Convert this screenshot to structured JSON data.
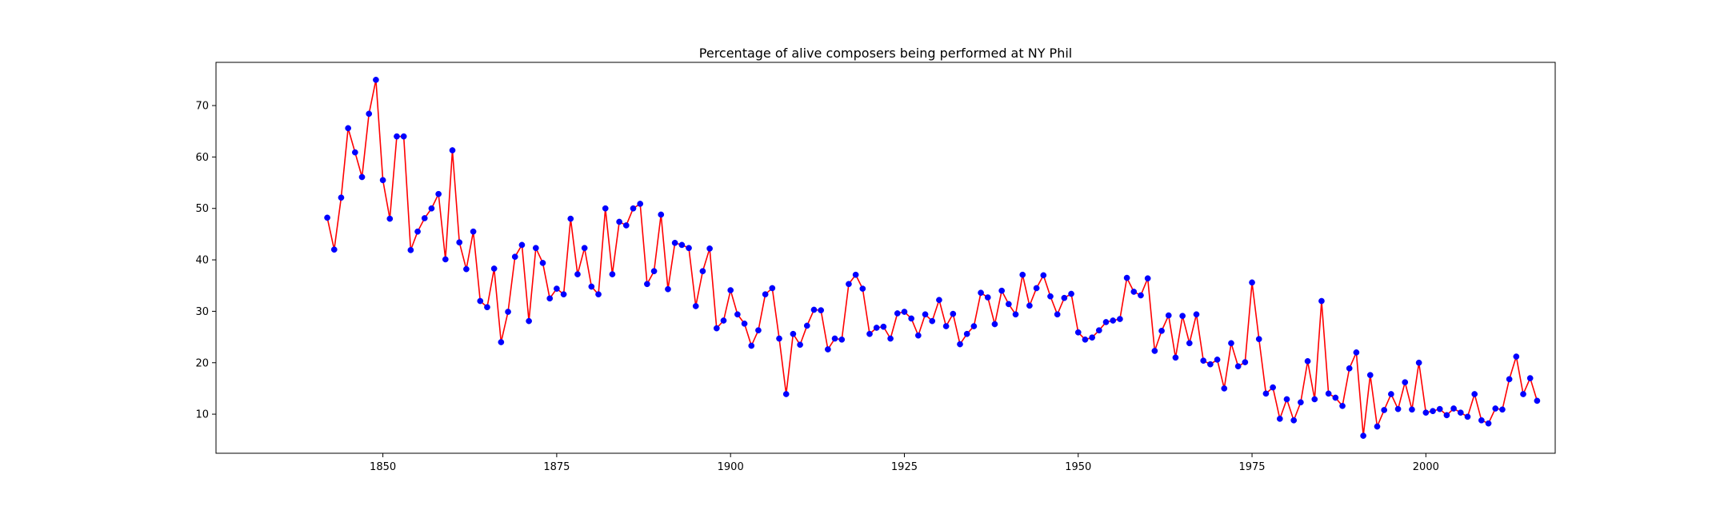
{
  "chart_data": {
    "type": "line",
    "title": "Percentage of alive composers being performed at NY Phil",
    "xlabel": "",
    "ylabel": "",
    "xlim": [
      1826,
      2018.6
    ],
    "ylim": [
      2.4,
      78.4
    ],
    "x_ticks": [
      1850,
      1875,
      1900,
      1925,
      1950,
      1975,
      2000
    ],
    "y_ticks": [
      10,
      20,
      30,
      40,
      50,
      60,
      70
    ],
    "grid": false,
    "legend": "none",
    "line_color": "#ff0000",
    "marker_color": "#0000ff",
    "series": [
      {
        "x": [
          1842,
          1843,
          1844,
          1845,
          1846,
          1847,
          1848,
          1849,
          1850,
          1851,
          1852,
          1853,
          1854,
          1855,
          1856,
          1857,
          1858,
          1859,
          1860,
          1861,
          1862,
          1863,
          1864,
          1865,
          1866,
          1867,
          1868,
          1869,
          1870,
          1871,
          1872,
          1873,
          1874,
          1875,
          1876,
          1877,
          1878,
          1879,
          1880,
          1881,
          1882,
          1883,
          1884,
          1885,
          1886,
          1887,
          1888,
          1889,
          1890,
          1891,
          1892,
          1893,
          1894,
          1895,
          1896,
          1897,
          1898,
          1899,
          1900,
          1901,
          1902,
          1903,
          1904,
          1905,
          1906,
          1907,
          1908,
          1909,
          1910,
          1911,
          1912,
          1913,
          1914,
          1915,
          1916,
          1917,
          1918,
          1919,
          1920,
          1921,
          1922,
          1923,
          1924,
          1925,
          1926,
          1927,
          1928,
          1929,
          1930,
          1931,
          1932,
          1933,
          1934,
          1935,
          1936,
          1937,
          1938,
          1939,
          1940,
          1941,
          1942,
          1943,
          1944,
          1945,
          1946,
          1947,
          1948,
          1949,
          1950,
          1951,
          1952,
          1953,
          1954,
          1955,
          1956,
          1957,
          1958,
          1959,
          1960,
          1961,
          1962,
          1963,
          1964,
          1965,
          1966,
          1967,
          1968,
          1969,
          1970,
          1971,
          1972,
          1973,
          1974,
          1975,
          1976,
          1977,
          1978,
          1979,
          1980,
          1981,
          1982,
          1983,
          1984,
          1985,
          1986,
          1987,
          1988,
          1989,
          1990,
          1991,
          1992,
          1993,
          1994,
          1995,
          1996,
          1997,
          1998,
          1999,
          2000,
          2001,
          2002,
          2003,
          2004,
          2005,
          2006,
          2007,
          2008,
          2009,
          2010,
          2011,
          2012,
          2013,
          2014,
          2015,
          2016
        ],
        "values": [
          48.2,
          42.0,
          52.1,
          65.6,
          60.9,
          56.1,
          68.4,
          75.0,
          55.5,
          48.0,
          64.0,
          64.0,
          41.9,
          45.5,
          48.1,
          50.0,
          52.8,
          40.1,
          61.3,
          43.4,
          38.2,
          45.5,
          32.0,
          30.8,
          38.3,
          24.0,
          29.9,
          40.6,
          42.9,
          28.1,
          42.3,
          39.4,
          32.5,
          34.4,
          33.3,
          48.0,
          37.2,
          42.3,
          34.8,
          33.3,
          50.0,
          37.2,
          47.4,
          46.7,
          50.0,
          50.9,
          35.3,
          37.8,
          48.8,
          34.3,
          43.3,
          42.9,
          42.3,
          31.0,
          37.8,
          42.2,
          26.7,
          28.2,
          34.1,
          29.4,
          27.6,
          23.3,
          26.3,
          33.3,
          34.5,
          24.7,
          13.9,
          25.6,
          23.5,
          27.2,
          30.3,
          30.2,
          22.6,
          24.7,
          24.5,
          35.3,
          37.1,
          34.4,
          25.6,
          26.8,
          27.0,
          24.7,
          29.6,
          29.9,
          28.6,
          25.3,
          29.4,
          28.1,
          32.2,
          27.1,
          29.5,
          23.6,
          25.6,
          27.1,
          33.6,
          32.7,
          27.5,
          34.0,
          31.4,
          29.4,
          37.1,
          31.1,
          34.5,
          37.0,
          32.9,
          29.4,
          32.6,
          33.4,
          25.9,
          24.5,
          24.9,
          26.3,
          27.9,
          28.2,
          28.5,
          36.5,
          33.8,
          33.1,
          36.4,
          22.3,
          26.2,
          29.2,
          21.0,
          29.1,
          23.8,
          29.4,
          20.4,
          19.7,
          20.6,
          15.0,
          23.8,
          19.3,
          20.1,
          35.6,
          24.6,
          14.0,
          15.2,
          9.1,
          12.9,
          8.8,
          12.3,
          20.3,
          12.9,
          32.0,
          14.0,
          13.2,
          11.6,
          18.9,
          22.0,
          5.8,
          17.6,
          7.6,
          10.8,
          13.9,
          11.0,
          16.2,
          10.9,
          20.0,
          10.3,
          10.6,
          11.0,
          9.8,
          11.1,
          10.3,
          9.5,
          13.9,
          8.8,
          8.2,
          11.1,
          10.9,
          16.8,
          21.2,
          13.9,
          17.0,
          12.6
        ]
      }
    ]
  }
}
